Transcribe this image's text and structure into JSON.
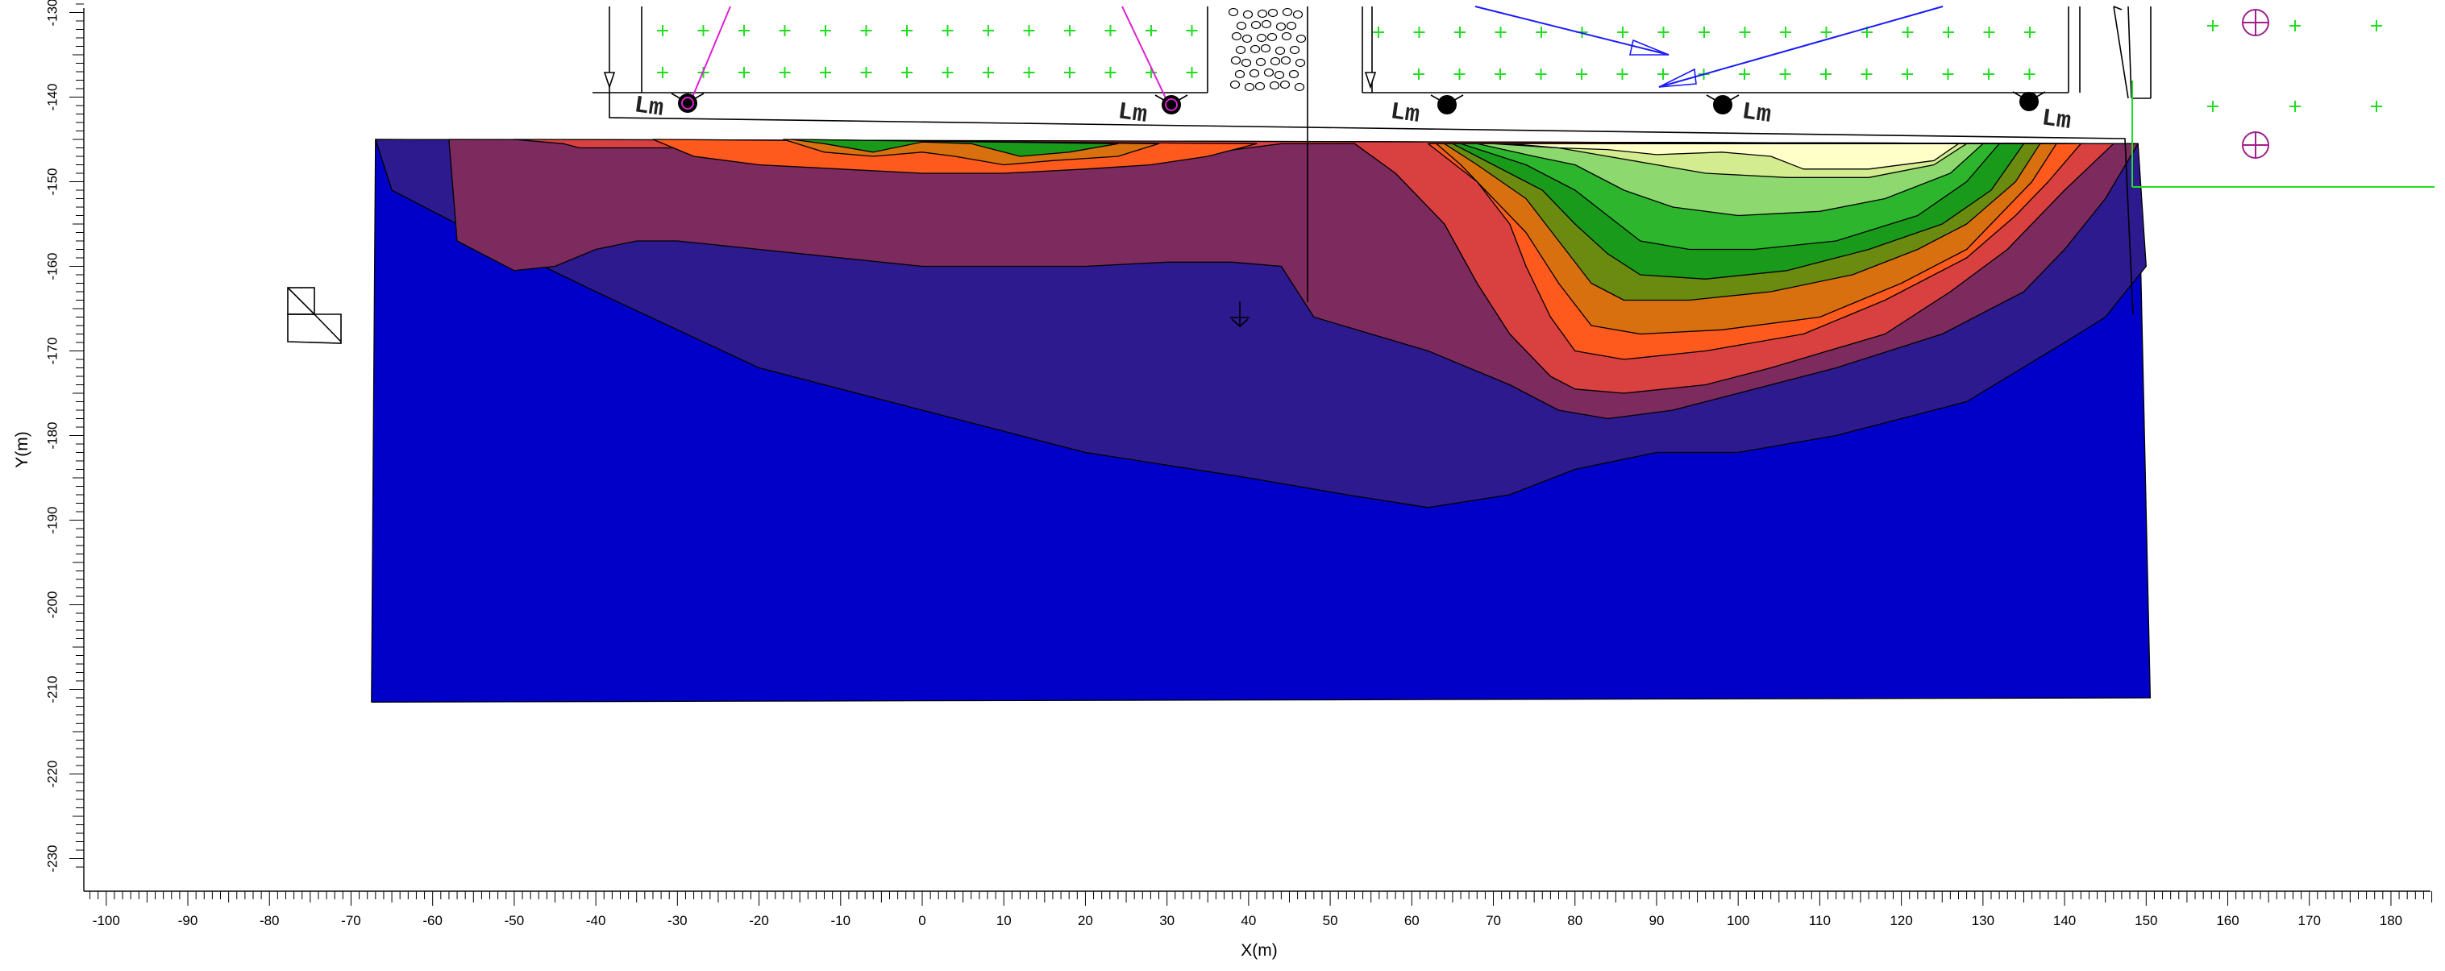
{
  "chart_data": {
    "type": "contour",
    "xlabel": "X(m)",
    "ylabel": "Y(m)",
    "xlim": [
      -102,
      185
    ],
    "ylim": [
      -231,
      -129
    ],
    "x_ticks": [
      -100,
      -90,
      -80,
      -70,
      -60,
      -50,
      -40,
      -30,
      -20,
      -10,
      0,
      10,
      20,
      30,
      40,
      50,
      60,
      70,
      80,
      90,
      100,
      110,
      120,
      130,
      140,
      150,
      160,
      170,
      180
    ],
    "y_ticks": [
      -130,
      -140,
      -150,
      -160,
      -170,
      -180,
      -190,
      -200,
      -210,
      -220,
      -230
    ],
    "grid": false,
    "legend": "none",
    "fill_levels": [
      {
        "color": "#0000c8",
        "outline": [
          [
            -67.5,
            -211.5
          ],
          [
            -67,
            -145
          ],
          [
            149,
            -145.5
          ],
          [
            150.5,
            -211
          ]
        ]
      },
      {
        "color": "#2c1a8e",
        "outline": [
          [
            -67,
            -145
          ],
          [
            149,
            -145.5
          ],
          [
            150,
            -160
          ],
          [
            145,
            -166
          ],
          [
            140,
            -169
          ],
          [
            128,
            -176
          ],
          [
            112,
            -180
          ],
          [
            100,
            -182
          ],
          [
            90,
            -182
          ],
          [
            80,
            -184
          ],
          [
            72,
            -187
          ],
          [
            62,
            -188.5
          ],
          [
            52,
            -187
          ],
          [
            40,
            -185
          ],
          [
            20,
            -182
          ],
          [
            0,
            -177
          ],
          [
            -20,
            -172
          ],
          [
            -40,
            -163
          ],
          [
            -55,
            -156
          ],
          [
            -65,
            -151
          ]
        ]
      },
      {
        "color": "#7d2a5e",
        "outline": [
          [
            -58,
            -145
          ],
          [
            149,
            -145.5
          ],
          [
            145,
            -152
          ],
          [
            140,
            -158
          ],
          [
            135,
            -163
          ],
          [
            125,
            -168
          ],
          [
            112,
            -172
          ],
          [
            100,
            -175
          ],
          [
            92,
            -177
          ],
          [
            84,
            -178
          ],
          [
            78,
            -177
          ],
          [
            72,
            -174
          ],
          [
            62,
            -170
          ],
          [
            55,
            -168
          ],
          [
            48,
            -166
          ],
          [
            44,
            -160
          ],
          [
            38,
            -159.5
          ],
          [
            30,
            -159.5
          ],
          [
            20,
            -160
          ],
          [
            10,
            -160
          ],
          [
            0,
            -160
          ],
          [
            -10,
            -159
          ],
          [
            -20,
            -158
          ],
          [
            -30,
            -157
          ],
          [
            -35,
            -157
          ],
          [
            -40,
            -158
          ],
          [
            -45,
            -160
          ],
          [
            -50,
            -160.5
          ],
          [
            -57,
            -157
          ]
        ]
      },
      {
        "color": "#d94040",
        "outline": [
          [
            -50,
            -145
          ],
          [
            146,
            -145.5
          ],
          [
            140,
            -151
          ],
          [
            133,
            -158
          ],
          [
            126,
            -163
          ],
          [
            118,
            -168
          ],
          [
            104,
            -172
          ],
          [
            96,
            -174
          ],
          [
            86,
            -175
          ],
          [
            80,
            -174.5
          ],
          [
            77,
            -173
          ],
          [
            72,
            -168
          ],
          [
            68,
            -162
          ],
          [
            64,
            -155
          ],
          [
            58,
            -149
          ],
          [
            53,
            -145.5
          ],
          [
            44,
            -145.5
          ],
          [
            28,
            -147.5
          ],
          [
            10,
            -147.5
          ],
          [
            -10,
            -147.5
          ],
          [
            -20,
            -147
          ],
          [
            -30,
            -146
          ],
          [
            -42,
            -146
          ],
          [
            -44,
            -145.5
          ]
        ]
      },
      {
        "color": "#ff5a1e",
        "outline": [
          [
            -33,
            -145
          ],
          [
            41,
            -145.5
          ],
          [
            35,
            -147
          ],
          [
            28,
            -148
          ],
          [
            20,
            -148.5
          ],
          [
            10,
            -149
          ],
          [
            0,
            -149
          ],
          [
            -10,
            -148.5
          ],
          [
            -20,
            -148
          ],
          [
            -28,
            -147
          ]
        ]
      },
      {
        "color": "#ff5a1e",
        "outline": [
          [
            62,
            -145.5
          ],
          [
            142,
            -145.5
          ],
          [
            138,
            -150
          ],
          [
            134,
            -154
          ],
          [
            128,
            -159
          ],
          [
            118,
            -164
          ],
          [
            108,
            -168
          ],
          [
            96,
            -170
          ],
          [
            86,
            -171
          ],
          [
            80,
            -170
          ],
          [
            77,
            -166
          ],
          [
            74,
            -160
          ],
          [
            72,
            -155
          ],
          [
            68,
            -150
          ],
          [
            64,
            -147
          ]
        ]
      },
      {
        "color": "#d97010",
        "outline": [
          [
            -17,
            -145
          ],
          [
            29,
            -145.5
          ],
          [
            24,
            -147
          ],
          [
            16,
            -147.5
          ],
          [
            10,
            -148
          ],
          [
            4,
            -147
          ],
          [
            0,
            -146.5
          ],
          [
            -6,
            -147
          ],
          [
            -12,
            -146.5
          ]
        ]
      },
      {
        "color": "#d97010",
        "outline": [
          [
            63,
            -145.5
          ],
          [
            139,
            -145.5
          ],
          [
            136,
            -150
          ],
          [
            132,
            -154
          ],
          [
            128,
            -158
          ],
          [
            120,
            -162
          ],
          [
            110,
            -166
          ],
          [
            98,
            -167.5
          ],
          [
            88,
            -168
          ],
          [
            82,
            -167
          ],
          [
            78,
            -162
          ],
          [
            74,
            -156
          ],
          [
            70,
            -152
          ],
          [
            66,
            -148
          ]
        ]
      },
      {
        "color": "#6a8a10",
        "outline": [
          [
            64,
            -145.5
          ],
          [
            137,
            -145.5
          ],
          [
            134,
            -150
          ],
          [
            128,
            -155
          ],
          [
            122,
            -158
          ],
          [
            114,
            -161
          ],
          [
            104,
            -163
          ],
          [
            94,
            -164
          ],
          [
            86,
            -164
          ],
          [
            82,
            -162
          ],
          [
            78,
            -157
          ],
          [
            74,
            -152
          ],
          [
            68,
            -148
          ]
        ]
      },
      {
        "color": "#1a9a1a",
        "outline": [
          [
            -16,
            -145
          ],
          [
            24,
            -145.5
          ],
          [
            18,
            -146.5
          ],
          [
            12,
            -147
          ],
          [
            6,
            -145.5
          ],
          [
            0,
            -145.3
          ],
          [
            -6,
            -146.5
          ],
          [
            -12,
            -145.5
          ]
        ]
      },
      {
        "color": "#1a9a1a",
        "outline": [
          [
            65,
            -145.5
          ],
          [
            135,
            -145.5
          ],
          [
            131,
            -151
          ],
          [
            125,
            -155
          ],
          [
            116,
            -158
          ],
          [
            106,
            -160.5
          ],
          [
            96,
            -161.5
          ],
          [
            88,
            -161
          ],
          [
            84,
            -158.5
          ],
          [
            80,
            -155
          ],
          [
            76,
            -151
          ],
          [
            70,
            -148
          ]
        ]
      },
      {
        "color": "#2db52d",
        "outline": [
          [
            66,
            -145.5
          ],
          [
            132,
            -145.5
          ],
          [
            128,
            -150
          ],
          [
            122,
            -154
          ],
          [
            112,
            -157
          ],
          [
            102,
            -158
          ],
          [
            94,
            -158
          ],
          [
            88,
            -157
          ],
          [
            84,
            -154
          ],
          [
            80,
            -151
          ],
          [
            74,
            -148
          ]
        ]
      },
      {
        "color": "#8ed870",
        "outline": [
          [
            68,
            -145.5
          ],
          [
            130,
            -145.5
          ],
          [
            126,
            -149
          ],
          [
            118,
            -152
          ],
          [
            110,
            -153.5
          ],
          [
            100,
            -154
          ],
          [
            92,
            -153
          ],
          [
            86,
            -151
          ],
          [
            80,
            -148
          ],
          [
            75,
            -147
          ]
        ]
      },
      {
        "color": "#d4ec90",
        "outline": [
          [
            70,
            -145.5
          ],
          [
            128,
            -145.5
          ],
          [
            124,
            -148
          ],
          [
            116,
            -149.5
          ],
          [
            106,
            -149.5
          ],
          [
            96,
            -149
          ],
          [
            90,
            -148
          ],
          [
            84,
            -147
          ],
          [
            78,
            -146
          ]
        ]
      },
      {
        "color": "#ffffc8",
        "outline": [
          [
            72,
            -145.5
          ],
          [
            127,
            -145.5
          ],
          [
            124,
            -147.5
          ],
          [
            116,
            -148.5
          ],
          [
            108,
            -148.5
          ],
          [
            104,
            -147
          ],
          [
            98,
            -146.5
          ],
          [
            90,
            -146.8
          ],
          [
            84,
            -146.2
          ],
          [
            78,
            -146
          ]
        ]
      }
    ]
  },
  "annotations": {
    "lm_labels": [
      "Lm",
      "Lm",
      "Lm",
      "Lm",
      "Lm"
    ]
  },
  "colors": {
    "plus_marks": "#22dd22",
    "pink_lines": "#e020d0",
    "blue_arrows": "#1a1aff",
    "magenta_marker": "#a0208a",
    "green_line": "#22dd22"
  }
}
